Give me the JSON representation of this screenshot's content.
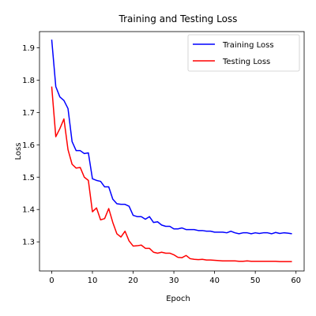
{
  "chart_data": {
    "type": "line",
    "title": "Training and Testing Loss",
    "xlabel": "Epoch",
    "ylabel": "Loss",
    "xlim": [
      -3,
      62
    ],
    "ylim": [
      1.21,
      1.95
    ],
    "xticks": [
      0,
      10,
      20,
      30,
      40,
      50,
      60
    ],
    "yticks": [
      1.3,
      1.4,
      1.5,
      1.6,
      1.7,
      1.8,
      1.9
    ],
    "grid": false,
    "legend_position": "upper right",
    "x": [
      0,
      1,
      2,
      3,
      4,
      5,
      6,
      7,
      8,
      9,
      10,
      11,
      12,
      13,
      14,
      15,
      16,
      17,
      18,
      19,
      20,
      21,
      22,
      23,
      24,
      25,
      26,
      27,
      28,
      29,
      30,
      31,
      32,
      33,
      34,
      35,
      36,
      37,
      38,
      39,
      40,
      41,
      42,
      43,
      44,
      45,
      46,
      47,
      48,
      49,
      50,
      51,
      52,
      53,
      54,
      55,
      56,
      57,
      58,
      59
    ],
    "series": [
      {
        "name": "Training Loss",
        "color": "#0000ff",
        "values": [
          1.925,
          1.78,
          1.748,
          1.737,
          1.712,
          1.61,
          1.582,
          1.582,
          1.573,
          1.575,
          1.495,
          1.49,
          1.487,
          1.47,
          1.47,
          1.432,
          1.418,
          1.416,
          1.416,
          1.41,
          1.382,
          1.378,
          1.378,
          1.37,
          1.378,
          1.36,
          1.362,
          1.352,
          1.348,
          1.348,
          1.34,
          1.34,
          1.343,
          1.338,
          1.338,
          1.338,
          1.335,
          1.335,
          1.333,
          1.333,
          1.33,
          1.33,
          1.33,
          1.328,
          1.333,
          1.328,
          1.325,
          1.328,
          1.328,
          1.325,
          1.328,
          1.326,
          1.328,
          1.328,
          1.325,
          1.329,
          1.326,
          1.328,
          1.327,
          1.325
        ]
      },
      {
        "name": "Testing Loss",
        "color": "#ff0000",
        "values": [
          1.78,
          1.625,
          1.65,
          1.68,
          1.585,
          1.54,
          1.528,
          1.53,
          1.5,
          1.49,
          1.393,
          1.405,
          1.368,
          1.372,
          1.403,
          1.36,
          1.325,
          1.315,
          1.333,
          1.303,
          1.287,
          1.288,
          1.29,
          1.28,
          1.28,
          1.268,
          1.265,
          1.268,
          1.265,
          1.265,
          1.26,
          1.252,
          1.251,
          1.258,
          1.248,
          1.246,
          1.245,
          1.246,
          1.244,
          1.244,
          1.243,
          1.242,
          1.241,
          1.241,
          1.241,
          1.241,
          1.24,
          1.24,
          1.241,
          1.24,
          1.24,
          1.24,
          1.24,
          1.24,
          1.24,
          1.24,
          1.239,
          1.239,
          1.239,
          1.239
        ]
      }
    ]
  }
}
